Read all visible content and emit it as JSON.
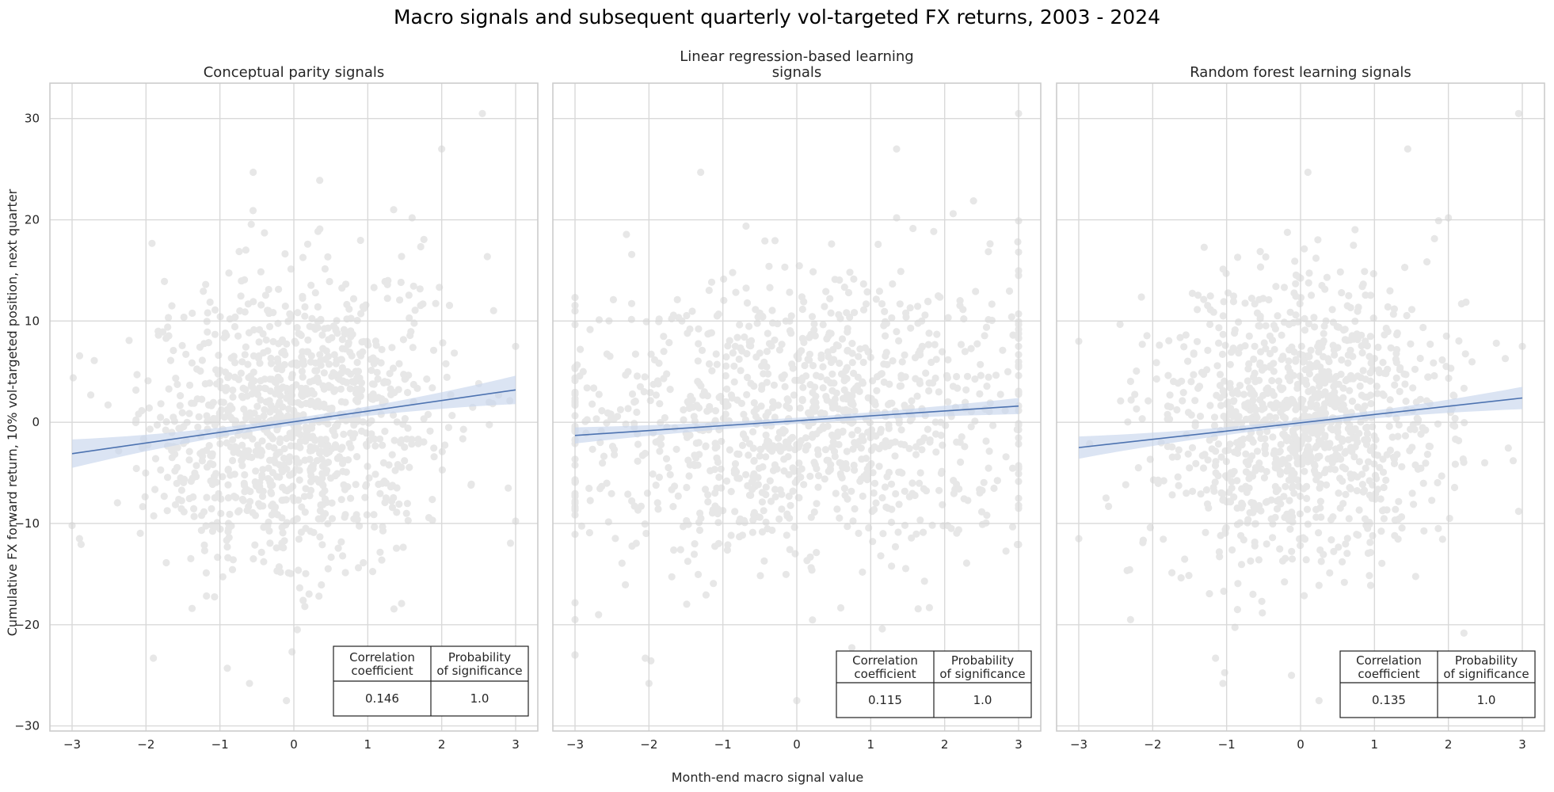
{
  "figure": {
    "title": "Macro signals and subsequent quarterly vol-targeted FX returns, 2003 - 2024",
    "xlabel": "Month-end macro signal value",
    "ylabel": "Cumulative FX forward return, 10% vol-targeted position, next quarter"
  },
  "colors": {
    "points": "#d4d4d4",
    "line": "#4c72b0",
    "band": "#c8d6ec",
    "grid": "#d9d9d9",
    "spine": "#cccccc"
  },
  "table_headers": {
    "col1_line1": "Correlation",
    "col1_line2": "coefficient",
    "col2_line1": "Probability",
    "col2_line2": "of significance"
  },
  "chart_data": [
    {
      "type": "scatter",
      "title_lines": [
        "Conceptual parity signals"
      ],
      "xlim": [
        -3.3,
        3.3
      ],
      "ylim": [
        -30.5,
        33.5
      ],
      "xticks": [
        -3,
        -2,
        -1,
        0,
        1,
        2,
        3
      ],
      "yticks": [
        -30,
        -20,
        -10,
        0,
        10,
        20,
        30
      ],
      "regression": {
        "x": [
          -3,
          3
        ],
        "y": [
          -3.1,
          3.2
        ],
        "ci_halfwidth_ends": 1.4,
        "ci_halfwidth_center": 0.35
      },
      "point_spread": 1.0,
      "correlation_coefficient": "0.146",
      "probability_of_significance": "1.0",
      "outliers": [
        [
          2.55,
          30.5
        ],
        [
          2.0,
          27.0
        ],
        [
          -0.55,
          24.7
        ],
        [
          0.35,
          23.9
        ],
        [
          1.35,
          21.0
        ],
        [
          1.6,
          20.2
        ],
        [
          -0.1,
          -27.5
        ],
        [
          -0.6,
          -25.8
        ],
        [
          -1.9,
          -23.3
        ],
        [
          -0.9,
          -24.3
        ],
        [
          -3.0,
          -10.2
        ],
        [
          -2.9,
          -11.5
        ],
        [
          -2.7,
          6.1
        ],
        [
          3.0,
          7.5
        ],
        [
          2.9,
          -6.5
        ]
      ]
    },
    {
      "type": "scatter",
      "title_lines": [
        "Linear regression-based learning",
        "signals"
      ],
      "xlim": [
        -3.3,
        3.3
      ],
      "ylim": [
        -30.5,
        33.5
      ],
      "xticks": [
        -3,
        -2,
        -1,
        0,
        1,
        2,
        3
      ],
      "yticks": [
        -30,
        -20,
        -10,
        0,
        10,
        20,
        30
      ],
      "regression": {
        "x": [
          -3,
          3
        ],
        "y": [
          -1.3,
          1.6
        ],
        "ci_halfwidth_ends": 0.8,
        "ci_halfwidth_center": 0.3
      },
      "point_spread": 1.7,
      "correlation_coefficient": "0.115",
      "probability_of_significance": "1.0",
      "outliers": [
        [
          3.0,
          30.5
        ],
        [
          1.35,
          27.0
        ],
        [
          -1.3,
          24.7
        ],
        [
          1.35,
          20.2
        ],
        [
          0.0,
          -27.5
        ],
        [
          -2.0,
          -25.8
        ],
        [
          -2.05,
          -23.3
        ],
        [
          -3.0,
          -23.0
        ],
        [
          -3.0,
          -19.5
        ],
        [
          3.0,
          14.5
        ],
        [
          3.0,
          -8.5
        ],
        [
          -3.0,
          11.0
        ]
      ]
    },
    {
      "type": "scatter",
      "title_lines": [
        "Random forest learning signals"
      ],
      "xlim": [
        -3.3,
        3.3
      ],
      "ylim": [
        -30.5,
        33.5
      ],
      "xticks": [
        -3,
        -2,
        -1,
        0,
        1,
        2,
        3
      ],
      "yticks": [
        -30,
        -20,
        -10,
        0,
        10,
        20,
        30
      ],
      "regression": {
        "x": [
          -3,
          3
        ],
        "y": [
          -2.5,
          2.4
        ],
        "ci_halfwidth_ends": 1.1,
        "ci_halfwidth_center": 0.3
      },
      "point_spread": 1.0,
      "correlation_coefficient": "0.135",
      "probability_of_significance": "1.0",
      "outliers": [
        [
          2.95,
          30.5
        ],
        [
          1.45,
          27.0
        ],
        [
          0.1,
          24.7
        ],
        [
          2.0,
          20.2
        ],
        [
          0.25,
          -27.5
        ],
        [
          -1.05,
          -25.8
        ],
        [
          -1.15,
          -23.3
        ],
        [
          -2.3,
          -19.5
        ],
        [
          -3.0,
          -11.5
        ],
        [
          -3.0,
          8.0
        ],
        [
          3.0,
          7.5
        ],
        [
          2.95,
          -8.8
        ]
      ]
    }
  ]
}
